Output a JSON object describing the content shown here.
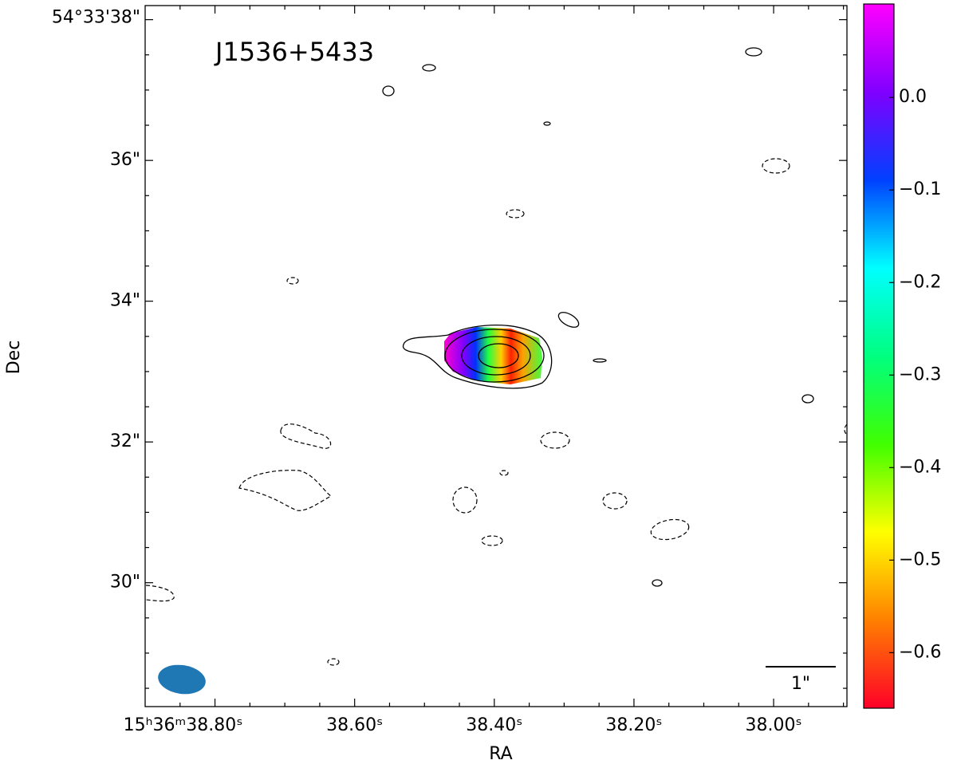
{
  "chart_data": {
    "type": "contour",
    "title": "J1536+5433",
    "x_label": "RA",
    "y_label": "Dec",
    "scale_bar_label": "1\"",
    "xlim": [
      38.9,
      37.895
    ],
    "ylim": [
      28.24,
      38.2
    ],
    "xticks": [
      {
        "value": 38.8,
        "label": "15ʰ36ᵐ38.80ˢ"
      },
      {
        "value": 38.6,
        "label": "38.60ˢ"
      },
      {
        "value": 38.4,
        "label": "38.40ˢ"
      },
      {
        "value": 38.2,
        "label": "38.20ˢ"
      },
      {
        "value": 38.0,
        "label": "38.00ˢ"
      }
    ],
    "yticks": [
      {
        "value": 38,
        "label": "54°33'38\""
      },
      {
        "value": 36,
        "label": "36\""
      },
      {
        "value": 34,
        "label": "34\""
      },
      {
        "value": 32,
        "label": "32\""
      },
      {
        "value": 30,
        "label": "30\""
      }
    ],
    "clim": [
      -0.66,
      0.101
    ],
    "cticks": [
      {
        "value": 0,
        "label": "0.0"
      },
      {
        "value": -0.1,
        "label": "−0.1"
      },
      {
        "value": -0.2,
        "label": "−0.2"
      },
      {
        "value": -0.3,
        "label": "−0.3"
      },
      {
        "value": -0.4,
        "label": "−0.4"
      },
      {
        "value": -0.5,
        "label": "−0.5"
      },
      {
        "value": -0.6,
        "label": "−0.6"
      }
    ],
    "colormap": [
      "#ff0028",
      "#ff8000",
      "#ffff00",
      "#40ff00",
      "#00ff80",
      "#00ffff",
      "#0040ff",
      "#8000ff",
      "#ff00ff"
    ],
    "beam_color": "#1f77b4"
  }
}
